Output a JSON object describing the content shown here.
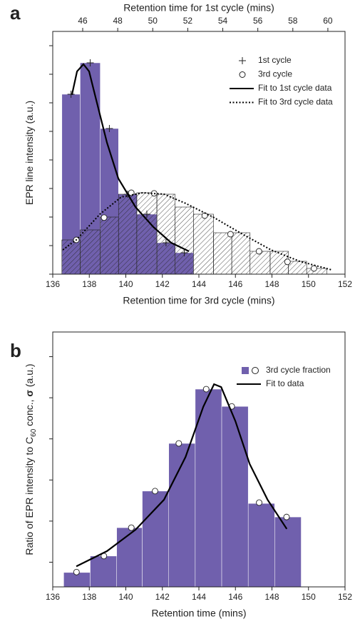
{
  "chart_data": [
    {
      "type": "histogram",
      "panel_label": "a",
      "xlabel": "Retention time for 3rd cycle (mins)",
      "x2label": "Retention time for 1st cycle (mins)",
      "ylabel": [
        "EPR line intensity (a.u.)"
      ],
      "xlim": [
        136,
        152
      ],
      "xticks": [
        136,
        138,
        140,
        142,
        144,
        146,
        148,
        150,
        152
      ],
      "x2lim": [
        44.29,
        60.98
      ],
      "x2ticks": [
        46,
        48,
        50,
        52,
        54,
        56,
        58,
        60
      ],
      "ylim": [
        0,
        8.5
      ],
      "yticks": [
        0,
        1,
        2,
        3,
        4,
        5,
        6,
        7,
        8
      ],
      "series": [
        {
          "type": "bar",
          "color": "#7060ad",
          "bins": [
            136.5,
            137.5,
            138.6,
            139.6,
            140.6,
            141.7,
            142.7,
            143.7
          ],
          "values": [
            6.3,
            7.4,
            5.1,
            2.8,
            2.1,
            1.1,
            0.75
          ]
        },
        {
          "type": "bar",
          "color": "#222222",
          "hatch": true,
          "bins": [
            136.5,
            137.5,
            138.6,
            139.6,
            140.6,
            141.7,
            142.7,
            143.7,
            144.8,
            145.8,
            146.8,
            147.9,
            148.9,
            149.9,
            151.0
          ],
          "values": [
            1.2,
            1.55,
            2.0,
            2.8,
            2.85,
            2.8,
            2.35,
            2.1,
            1.45,
            1.45,
            0.8,
            0.8,
            0.45,
            0.2
          ]
        },
        {
          "type": "scatter",
          "name": "1st cycle",
          "marker": "plus",
          "color": "#222222",
          "x": [
            137.0,
            138.05,
            139.1,
            140.1,
            141.15,
            142.2,
            143.2
          ],
          "values": [
            6.3,
            7.4,
            5.1,
            2.8,
            2.1,
            1.1,
            0.75
          ]
        },
        {
          "type": "scatter",
          "name": "3rd cycle",
          "marker": "circle",
          "color": "#222222",
          "x": [
            137.29,
            138.81,
            140.3,
            141.55,
            144.32,
            145.73,
            147.29,
            148.85,
            150.3
          ],
          "values": [
            1.2,
            1.98,
            2.85,
            2.83,
            2.05,
            1.4,
            0.8,
            0.43,
            0.2
          ]
        },
        {
          "type": "line",
          "name": "Fit to 1st cycle data",
          "color": "#000000",
          "dash": "solid",
          "x": [
            137.05,
            137.33,
            137.68,
            137.99,
            138.38,
            138.97,
            139.59,
            140.53,
            141.51,
            142.48,
            143.46
          ],
          "values": [
            6.28,
            7.1,
            7.35,
            7.1,
            6.1,
            4.6,
            3.35,
            2.35,
            1.65,
            1.1,
            0.8
          ]
        },
        {
          "type": "line",
          "name": "Fit to 3rd cycle data",
          "color": "#000000",
          "dash": "dotted",
          "x": [
            136.55,
            137.29,
            138.58,
            139.75,
            140.92,
            142.09,
            143.27,
            144.83,
            146.39,
            147.95,
            149.52,
            151.27
          ],
          "values": [
            0.85,
            1.2,
            2.1,
            2.7,
            2.85,
            2.8,
            2.48,
            1.98,
            1.4,
            0.85,
            0.45,
            0.15
          ]
        }
      ]
    },
    {
      "type": "histogram",
      "panel_label": "b",
      "xlabel": "Retention time (mins)",
      "ylabel": [
        "Ratio of EPR intensity to C",
        "60",
        " conc., ",
        "σ",
        " (a.u.)"
      ],
      "xlim": [
        136,
        152
      ],
      "xticks": [
        136,
        138,
        140,
        142,
        144,
        146,
        148,
        150,
        152
      ],
      "ylim": [
        0,
        6.2
      ],
      "yticks": [
        0.6,
        1.6,
        2.6,
        3.6,
        4.6,
        5.6
      ],
      "series": [
        {
          "type": "bar",
          "name": "3rd cycle fraction",
          "legend_marker": [
            "square",
            "circle"
          ],
          "color": "#7060ad",
          "bins": [
            136.6,
            138.05,
            139.5,
            140.9,
            142.35,
            143.8,
            145.25,
            146.7,
            148.15,
            149.6
          ],
          "values": [
            0.35,
            0.75,
            1.44,
            2.33,
            3.49,
            4.81,
            4.39,
            2.03,
            1.7
          ]
        },
        {
          "type": "scatter",
          "marker": "circle",
          "color": "#222222",
          "x": [
            137.3,
            138.8,
            140.3,
            141.6,
            142.9,
            144.4,
            145.8,
            147.3,
            148.8
          ],
          "values": [
            0.36,
            0.75,
            1.44,
            2.33,
            3.49,
            4.81,
            4.39,
            2.05,
            1.7
          ]
        },
        {
          "type": "line",
          "name": "Fit to data",
          "color": "#000000",
          "dash": "solid",
          "x": [
            137.29,
            138.97,
            140.53,
            142.09,
            143.27,
            144.24,
            144.83,
            145.22,
            146.0,
            146.78,
            147.76,
            148.81
          ],
          "values": [
            0.5,
            0.87,
            1.39,
            2.12,
            3.16,
            4.38,
            4.93,
            4.86,
            4.03,
            2.99,
            2.12,
            1.41
          ]
        }
      ]
    }
  ]
}
